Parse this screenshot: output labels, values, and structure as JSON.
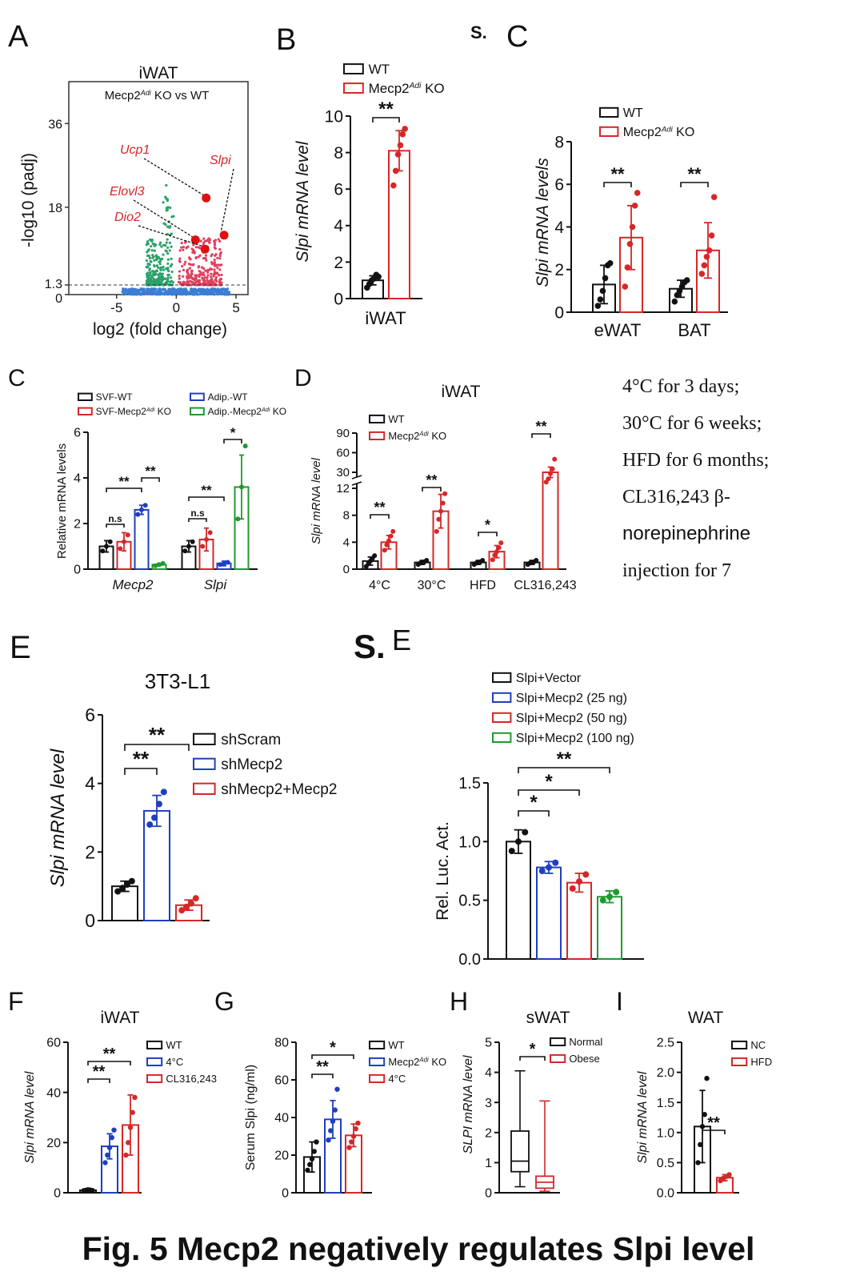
{
  "figure_title": "Fig. 5 Mecp2 negatively regulates Slpi level",
  "note": [
    "4°C for 3 days;",
    "30°C for 6 weeks;",
    "HFD for 6 months;",
    "CL316,243 β-",
    "norepinephrine",
    "injection for 7"
  ],
  "stray": {
    "s1": "S.",
    "s2": "S."
  },
  "colors": {
    "wt": "#111111",
    "ko": "#d62728",
    "blue": "#1f3fbf",
    "green": "#1f9a2f",
    "grey": "#c9c9c9"
  },
  "chart_data": [
    {
      "id": "A",
      "type": "scatter",
      "panel_label": "A",
      "title": "iWAT",
      "subtitle": "Mecp2^Adi KO vs WT",
      "xlabel": "log2 (fold change)",
      "ylabel": "-log10 (padj)",
      "x_ticks": [
        "-5",
        "0",
        "5"
      ],
      "y_ticks": [
        "0",
        "1.3",
        "18",
        "36"
      ],
      "xlim": [
        -9,
        6
      ],
      "ylim": [
        0,
        45
      ],
      "threshold_y": 1.3,
      "highlighted": [
        {
          "gene": "Ucp1",
          "x": 2.5,
          "y": 20
        },
        {
          "gene": "Slpi",
          "x": 4.0,
          "y": 12
        },
        {
          "gene": "Elovl3",
          "x": 1.6,
          "y": 11
        },
        {
          "gene": "Dio2",
          "x": 2.4,
          "y": 9
        }
      ]
    },
    {
      "id": "B",
      "type": "bar",
      "panel_label": "B",
      "ylabel": "Slpi mRNA level",
      "ylim": [
        0,
        10
      ],
      "y_ticks": [
        "0",
        "2",
        "4",
        "6",
        "8",
        "10"
      ],
      "categories": [
        "iWAT"
      ],
      "series": [
        {
          "name": "WT",
          "values": [
            1.0
          ],
          "err": [
            0.25
          ],
          "points": [
            [
              0.6,
              0.8,
              1.0,
              1.1,
              1.3,
              1.2
            ]
          ]
        },
        {
          "name": "Mecp2^Adi KO",
          "values": [
            8.1
          ],
          "err": [
            1.1
          ],
          "points": [
            [
              6.2,
              7.0,
              7.9,
              8.4,
              9.0,
              9.3
            ]
          ]
        }
      ],
      "significance": [
        {
          "label": "**"
        }
      ]
    },
    {
      "id": "C",
      "type": "bar",
      "panel_label": "C",
      "extra_label": "S.",
      "ylabel": "Slpi mRNA levels",
      "ylim": [
        0,
        8
      ],
      "y_ticks": [
        "0",
        "2",
        "4",
        "6",
        "8"
      ],
      "categories": [
        "eWAT",
        "BAT"
      ],
      "series": [
        {
          "name": "WT",
          "values": [
            1.3,
            1.1
          ],
          "err": [
            0.9,
            0.4
          ],
          "points": [
            [
              0.3,
              0.6,
              1.0,
              1.6,
              2.2,
              2.3
            ],
            [
              0.5,
              0.8,
              1.0,
              1.2,
              1.4,
              1.5
            ]
          ]
        },
        {
          "name": "Mecp2^Adi KO",
          "values": [
            3.5,
            2.9
          ],
          "err": [
            1.5,
            1.3
          ],
          "points": [
            [
              1.2,
              2.1,
              3.2,
              4.0,
              5.0,
              5.6
            ],
            [
              1.8,
              2.2,
              2.6,
              2.9,
              3.6,
              5.4
            ]
          ]
        }
      ],
      "significance": [
        {
          "label": "**"
        },
        {
          "label": "**"
        }
      ]
    },
    {
      "id": "C2",
      "type": "bar",
      "panel_label": "C",
      "ylabel": "Relative mRNA levels",
      "ylim": [
        0,
        6
      ],
      "y_ticks": [
        "0",
        "2",
        "4",
        "6"
      ],
      "categories": [
        "Mecp2",
        "Slpi"
      ],
      "series": [
        {
          "name": "SVF-WT",
          "values": [
            1.0,
            1.0
          ],
          "err": [
            0.25,
            0.25
          ],
          "points": [
            [
              0.8,
              1.0,
              1.2
            ],
            [
              0.8,
              1.0,
              1.2
            ]
          ]
        },
        {
          "name": "SVF-Mecp2^Adi KO",
          "values": [
            1.2,
            1.3
          ],
          "err": [
            0.4,
            0.5
          ],
          "points": [
            [
              0.9,
              1.2,
              1.5
            ],
            [
              1.0,
              1.3,
              1.6
            ]
          ]
        },
        {
          "name": "Adip.-WT",
          "values": [
            2.6,
            0.25
          ],
          "err": [
            0.2,
            0.1
          ],
          "points": [
            [
              2.4,
              2.6,
              2.8
            ],
            [
              0.2,
              0.25,
              0.3
            ]
          ]
        },
        {
          "name": "Adip.-Mecp2^Adi KO",
          "values": [
            0.2,
            3.6
          ],
          "err": [
            0.05,
            1.4
          ],
          "points": [
            [
              0.15,
              0.2,
              0.25
            ],
            [
              2.2,
              3.6,
              5.4
            ]
          ]
        }
      ],
      "significance": [
        {
          "label": "**"
        },
        {
          "label": "**"
        },
        {
          "label": "n.s"
        },
        {
          "label": "**"
        },
        {
          "label": "n.s"
        },
        {
          "label": "*"
        }
      ]
    },
    {
      "id": "D",
      "type": "bar",
      "panel_label": "D",
      "title": "iWAT",
      "ylabel": "Slpi mRNA level",
      "y_ticks": [
        "0",
        "4",
        "8",
        "12",
        "30",
        "60",
        "90"
      ],
      "categories": [
        "4°C",
        "30°C",
        "HFD",
        "CL316,243"
      ],
      "series": [
        {
          "name": "WT",
          "values": [
            1.2,
            1.0,
            1.0,
            1.0
          ],
          "err": [
            0.6,
            0.3,
            0.3,
            0.3
          ],
          "points": [
            [
              0.4,
              0.8,
              1.2,
              1.6,
              2.0
            ],
            [
              0.7,
              0.9,
              1.0,
              1.1,
              1.3
            ],
            [
              0.7,
              0.9,
              1.0,
              1.1,
              1.3
            ],
            [
              0.7,
              0.9,
              1.0,
              1.1,
              1.3
            ]
          ]
        },
        {
          "name": "Mecp2^Adi KO",
          "values": [
            4.0,
            8.6,
            2.6,
            30
          ],
          "err": [
            1.0,
            2.5,
            0.9,
            8
          ],
          "points": [
            [
              2.8,
              3.6,
              4.2,
              4.9,
              5.6
            ],
            [
              5.6,
              7.4,
              8.6,
              9.8,
              11.2
            ],
            [
              1.4,
              2.1,
              2.6,
              3.2,
              3.9
            ],
            [
              15,
              20,
              28,
              35,
              50
            ]
          ]
        }
      ],
      "significance": [
        {
          "label": "**"
        },
        {
          "label": "**"
        },
        {
          "label": "*"
        },
        {
          "label": "**"
        }
      ]
    },
    {
      "id": "E",
      "type": "bar",
      "panel_label": "E",
      "title": "3T3-L1",
      "ylabel": "Slpi mRNA level",
      "ylim": [
        0,
        6
      ],
      "y_ticks": [
        "0",
        "2",
        "4",
        "6"
      ],
      "categories": [
        "shScram",
        "shMecp2",
        "shMecp2+Mecp2"
      ],
      "values": [
        1.0,
        3.2,
        0.45
      ],
      "err": [
        0.15,
        0.45,
        0.15
      ],
      "points": [
        [
          0.85,
          0.95,
          1.05,
          1.15
        ],
        [
          2.8,
          3.0,
          3.4,
          3.75
        ],
        [
          0.3,
          0.4,
          0.5,
          0.65
        ]
      ],
      "series_names": [
        "shScram",
        "shMecp2",
        "shMecp2+Mecp2"
      ],
      "significance": [
        {
          "label": "**"
        },
        {
          "label": "**"
        }
      ]
    },
    {
      "id": "E2",
      "type": "bar",
      "panel_label": "E",
      "ylabel": "Rel. Luc. Act.",
      "ylim": [
        0,
        1.5
      ],
      "y_ticks": [
        "0.0",
        "0.5",
        "1.0",
        "1.5"
      ],
      "categories": [
        "Slpi+Vector",
        "Slpi+Mecp2 (25 ng)",
        "Slpi+Mecp2 (50 ng)",
        "Slpi+Mecp2 (100 ng)"
      ],
      "values": [
        1.0,
        0.78,
        0.65,
        0.53
      ],
      "err": [
        0.1,
        0.05,
        0.08,
        0.05
      ],
      "points": [
        [
          0.92,
          1.0,
          1.08
        ],
        [
          0.75,
          0.78,
          0.82
        ],
        [
          0.6,
          0.66,
          0.72
        ],
        [
          0.5,
          0.53,
          0.57
        ]
      ],
      "series_names": [
        "Slpi+Vector",
        "Slpi+Mecp2 (25 ng)",
        "Slpi+Mecp2 (50 ng)",
        "Slpi+Mecp2 (100 ng)"
      ],
      "significance": [
        {
          "label": "*"
        },
        {
          "label": "*"
        },
        {
          "label": "**"
        }
      ]
    },
    {
      "id": "F",
      "type": "bar",
      "panel_label": "F",
      "title": "iWAT",
      "ylabel": "Slpi mRNA level",
      "ylim": [
        0,
        60
      ],
      "y_ticks": [
        "0",
        "20",
        "40",
        "60"
      ],
      "categories": [
        "WT",
        "4°C",
        "CL316,243"
      ],
      "values": [
        1.0,
        18.5,
        27
      ],
      "err": [
        0.3,
        5,
        12
      ],
      "points": [
        [
          0.8,
          1.0,
          1.2,
          1.1,
          0.9
        ],
        [
          12,
          15,
          18,
          22,
          25
        ],
        [
          15,
          20,
          26,
          32,
          38
        ]
      ],
      "series_names": [
        "WT",
        "4°C",
        "CL316,243"
      ],
      "significance": [
        {
          "label": "**"
        },
        {
          "label": "**"
        }
      ]
    },
    {
      "id": "G",
      "type": "bar",
      "panel_label": "G",
      "ylabel": "Serum Slpi (ng/ml)",
      "ylim": [
        0,
        80
      ],
      "y_ticks": [
        "0",
        "20",
        "40",
        "60",
        "80"
      ],
      "categories": [
        "WT",
        "Mecp2^Adi KO",
        "4°C"
      ],
      "values": [
        19,
        39,
        30.5
      ],
      "err": [
        8,
        10,
        6
      ],
      "points": [
        [
          12,
          15,
          18,
          22,
          27
        ],
        [
          28,
          33,
          38,
          44,
          55
        ],
        [
          24,
          27,
          30,
          34,
          37
        ]
      ],
      "series_names": [
        "WT",
        "Mecp2^Adi KO",
        "4°C"
      ],
      "significance": [
        {
          "label": "**"
        },
        {
          "label": "*"
        }
      ]
    },
    {
      "id": "H",
      "type": "box",
      "panel_label": "H",
      "title": "sWAT",
      "ylabel": "SLPI mRNA level",
      "ylim": [
        0,
        5
      ],
      "y_ticks": [
        "0",
        "1",
        "2",
        "3",
        "4",
        "5"
      ],
      "categories": [
        "Normal",
        "Obese"
      ],
      "boxes": [
        {
          "min": 0.2,
          "q1": 0.7,
          "median": 1.05,
          "q3": 2.05,
          "max": 4.05
        },
        {
          "min": 0.05,
          "q1": 0.15,
          "median": 0.35,
          "q3": 0.55,
          "max": 3.05
        }
      ],
      "significance": [
        {
          "label": "*"
        }
      ]
    },
    {
      "id": "I",
      "type": "bar",
      "panel_label": "I",
      "title": "WAT",
      "ylabel": "Slpi mRNA level",
      "ylim": [
        0,
        2.5
      ],
      "y_ticks": [
        "0.0",
        "0.5",
        "1.0",
        "1.5",
        "2.0",
        "2.5"
      ],
      "categories": [
        "NC",
        "HFD"
      ],
      "values": [
        1.1,
        0.25
      ],
      "err": [
        0.6,
        0.05
      ],
      "points": [
        [
          0.5,
          0.8,
          1.1,
          1.3,
          1.9
        ],
        [
          0.2,
          0.24,
          0.27,
          0.3
        ]
      ],
      "series_names": [
        "NC",
        "HFD"
      ],
      "significance": [
        {
          "label": "**"
        }
      ]
    }
  ]
}
